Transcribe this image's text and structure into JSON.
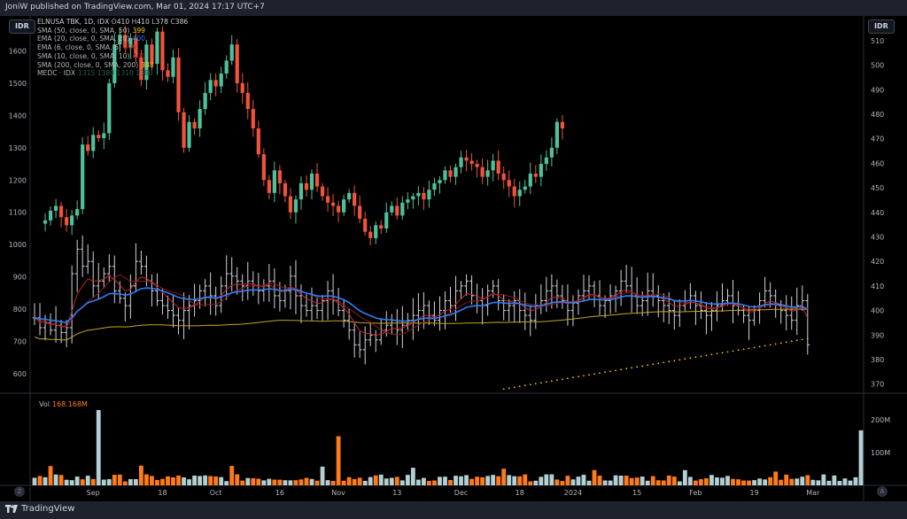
{
  "header": {
    "publisher": "JoniW published on TradingView.com, Mar 01, 2024 17:17 UTC+7"
  },
  "footer": {
    "brand": "TradingView"
  },
  "currency_badge_left": "IDR",
  "currency_badge_right": "IDR",
  "legend": {
    "symbol": "ELNUSA TBK, 1D, IDX",
    "ohlc": [
      {
        "k": "O",
        "v": "410"
      },
      {
        "k": "H",
        "v": "410"
      },
      {
        "k": "L",
        "v": "378"
      },
      {
        "k": "C",
        "v": "386"
      }
    ],
    "indicators": [
      {
        "label": "SMA (50, close, 0, SMA, 50)",
        "value": "399",
        "color": "#f7c31b"
      },
      {
        "label": "EMA (20, close, 0, SMA, 20)",
        "value": "400",
        "color": "#2f7df6"
      },
      {
        "label": "EMA (6, close, 0, SMA, 6)",
        "value": "399",
        "color": "#c1272d"
      },
      {
        "label": "SMA (10, close, 0, SMA, 10)",
        "value": "401",
        "color": "#8b1a1a"
      },
      {
        "label": "SMA (200, close, 0, SMA, 200)",
        "value": "388",
        "color": "#f7c31b"
      },
      {
        "label": "MEDC · IDX",
        "value": "1315 1380 1310 1380",
        "color": "#2a5e4a"
      }
    ]
  },
  "volume_legend": {
    "label": "Vol",
    "value": "168.168M"
  },
  "colors": {
    "up": "#4fc19a",
    "down": "#f0533b",
    "vol_up": "#b3cfd3",
    "vol_down": "#ff7a1a",
    "ema20": "#2f7df6",
    "ema6": "#c1272d",
    "sma10": "#8b1a1a",
    "sma200": "#c9a227",
    "dots": "#f7c31b",
    "bars": "#d1d4dc"
  },
  "chart_data": {
    "type": "candlestick",
    "left_axis": {
      "ticks": [
        600,
        700,
        800,
        900,
        1000,
        1100,
        1200,
        1300,
        1400,
        1500,
        1600
      ],
      "range": [
        545,
        1670
      ]
    },
    "right_axis": {
      "ticks": [
        370,
        380,
        390,
        400,
        410,
        420,
        430,
        440,
        450,
        460,
        470,
        480,
        490,
        500,
        510
      ],
      "range": [
        367,
        515
      ]
    },
    "volume_axis": {
      "ticks": [
        "100M",
        "200M"
      ],
      "tick_values": [
        100,
        200
      ],
      "max": 265
    },
    "x_labels": [
      "Sep",
      "18",
      "Oct",
      "16",
      "Nov",
      "13",
      "Dec",
      "18",
      "2024",
      "15",
      "Feb",
      "19",
      "Mar"
    ],
    "x_label_bars": [
      11,
      24,
      34,
      46,
      57,
      68,
      80,
      91,
      101,
      113,
      124,
      135,
      146
    ],
    "series": {
      "medc_close": [
        1075,
        1105,
        1120,
        1085,
        1060,
        1090,
        1110,
        1310,
        1290,
        1340,
        1330,
        1345,
        1500,
        1620,
        1650,
        1610,
        1640,
        1580,
        1510,
        1620,
        1560,
        1660,
        1540,
        1520,
        1580,
        1410,
        1300,
        1380,
        1360,
        1420,
        1470,
        1510,
        1490,
        1530,
        1570,
        1620,
        1500,
        1470,
        1420,
        1360,
        1280,
        1200,
        1160,
        1230,
        1190,
        1150,
        1100,
        1140,
        1190,
        1170,
        1220,
        1180,
        1150,
        1130,
        1120,
        1100,
        1140,
        1160,
        1120,
        1080,
        1040,
        1020,
        1060,
        1050,
        1100,
        1120,
        1090,
        1130,
        1140,
        1150,
        1160,
        1140,
        1170,
        1190,
        1200,
        1230,
        1210,
        1240,
        1270,
        1260,
        1250,
        1240,
        1210,
        1230,
        1260,
        1220,
        1200,
        1180,
        1150,
        1170,
        1180,
        1220,
        1210,
        1250,
        1270,
        1300,
        1380,
        1360
      ],
      "elnusa_close": [
        397,
        393,
        395,
        392,
        394,
        391,
        393,
        415,
        425,
        418,
        420,
        410,
        412,
        415,
        418,
        408,
        405,
        402,
        410,
        420,
        418,
        412,
        408,
        404,
        402,
        400,
        398,
        396,
        400,
        402,
        404,
        408,
        410,
        406,
        402,
        410,
        415,
        414,
        412,
        410,
        412,
        410,
        408,
        410,
        412,
        406,
        404,
        408,
        414,
        406,
        402,
        400,
        402,
        400,
        404,
        408,
        404,
        400,
        396,
        392,
        386,
        384,
        388,
        390,
        388,
        392,
        394,
        396,
        392,
        394,
        396,
        398,
        400,
        402,
        398,
        396,
        400,
        404,
        402,
        408,
        410,
        412,
        406,
        404,
        402,
        408,
        410,
        404,
        400,
        402,
        404,
        400,
        398,
        396,
        402,
        404,
        408,
        410,
        406,
        404,
        400,
        403,
        406,
        408,
        410,
        406,
        402,
        404,
        406,
        408,
        412,
        410,
        406,
        402,
        404,
        408,
        406,
        404,
        402,
        400,
        398,
        402,
        404,
        406,
        402,
        400,
        398,
        400,
        402,
        404,
        406,
        402,
        400,
        398,
        396,
        400,
        404,
        408,
        406,
        402,
        400,
        398,
        396,
        402,
        404,
        386
      ]
    }
  }
}
